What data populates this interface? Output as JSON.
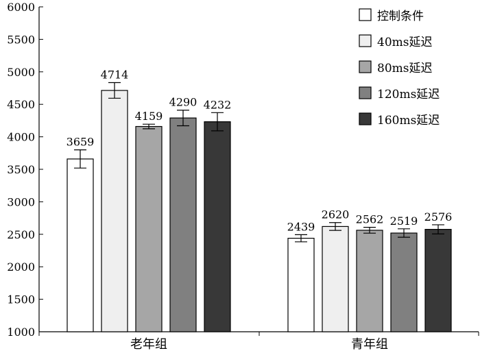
{
  "chart_data": {
    "type": "bar",
    "title": "",
    "xlabel": "",
    "ylabel": "",
    "ylim": [
      1000,
      6000
    ],
    "yticks": [
      1000,
      1500,
      2000,
      2500,
      3000,
      3500,
      4000,
      4500,
      5000,
      5500,
      6000
    ],
    "grid": false,
    "legend_position": "top-right",
    "categories": [
      "老年组",
      "青年组"
    ],
    "series": [
      {
        "name": "控制条件",
        "color": "#ffffff",
        "values": [
          3659,
          2439
        ],
        "errors": [
          140,
          55
        ]
      },
      {
        "name": "40ms延迟",
        "color": "#efefef",
        "values": [
          4714,
          2620
        ],
        "errors": [
          120,
          60
        ]
      },
      {
        "name": "80ms延迟",
        "color": "#a6a6a6",
        "values": [
          4159,
          2562
        ],
        "errors": [
          35,
          45
        ]
      },
      {
        "name": "120ms延迟",
        "color": "#808080",
        "values": [
          4290,
          2519
        ],
        "errors": [
          120,
          65
        ]
      },
      {
        "name": "160ms延迟",
        "color": "#383838",
        "values": [
          4232,
          2576
        ],
        "errors": [
          140,
          70
        ]
      }
    ],
    "data_labels": [
      [
        "3659",
        "2439"
      ],
      [
        "4714",
        "2620"
      ],
      [
        "4159",
        "2562"
      ],
      [
        "4290",
        "2519"
      ],
      [
        "4232",
        "2576"
      ]
    ]
  }
}
